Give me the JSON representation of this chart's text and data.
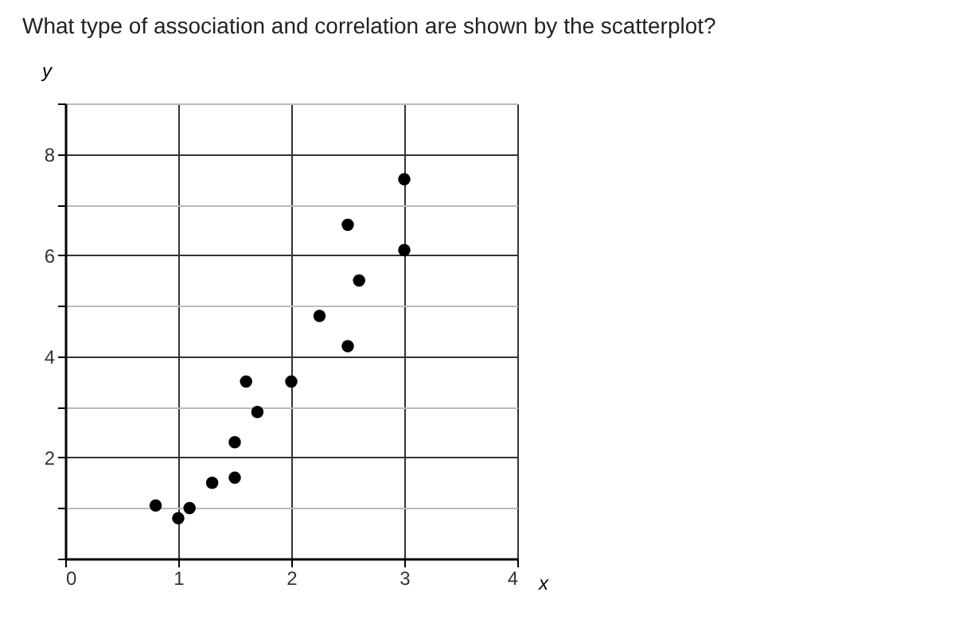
{
  "chart_data": {
    "type": "scatter",
    "title": "What type of association and correlation are shown by the scatterplot?",
    "xlabel": "x",
    "ylabel": "y",
    "x": [
      0.8,
      1.0,
      1.1,
      1.3,
      1.5,
      1.5,
      1.6,
      1.7,
      2.0,
      2.25,
      2.5,
      2.6,
      2.5,
      3.0,
      3.0
    ],
    "series": [
      {
        "color": "#000000",
        "values": [
          1.05,
          0.8,
          1.0,
          1.5,
          1.6,
          2.3,
          3.5,
          2.9,
          3.5,
          4.8,
          4.2,
          5.5,
          6.6,
          6.1,
          7.5
        ]
      }
    ],
    "xlim": [
      0,
      4
    ],
    "ylim": [
      0,
      9
    ],
    "xticks": [
      0,
      1,
      2,
      3,
      4
    ],
    "yticks": [
      {
        "value": 0,
        "label": null
      },
      {
        "value": 1,
        "label": null
      },
      2,
      {
        "value": 3,
        "label": null
      },
      4,
      {
        "value": 5,
        "label": null
      },
      6,
      {
        "value": 7,
        "label": null
      },
      8,
      {
        "value": 9,
        "label": null
      }
    ],
    "grid": true,
    "marker": "circle",
    "legend": false
  }
}
